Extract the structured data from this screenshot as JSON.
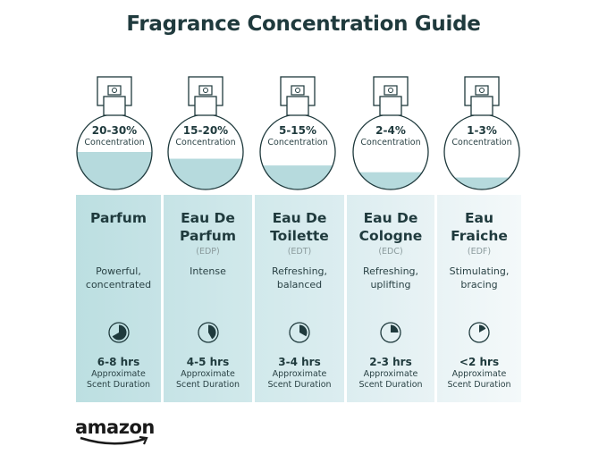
{
  "title": "Fragrance Concentration Guide",
  "colors": {
    "text": "#1f3a3d",
    "liquid": "#b6dadd",
    "panel_dark": "#bcdfe1",
    "panel_light": "#eef6f8"
  },
  "items": [
    {
      "concentration": "20-30%",
      "concentration_label": "Concentration",
      "fill_level": 0.5,
      "name_line1": "Parfum",
      "name_line2": "",
      "abbr": "",
      "desc_line1": "Powerful,",
      "desc_line2": "concentrated",
      "duration": "6-8 hrs",
      "duration_label1": "Approximate",
      "duration_label2": "Scent Duration",
      "clock_fraction": 0.667
    },
    {
      "concentration": "15-20%",
      "concentration_label": "Concentration",
      "fill_level": 0.41,
      "name_line1": "Eau De",
      "name_line2": "Parfum",
      "abbr": "(EDP)",
      "desc_line1": "Intense",
      "desc_line2": "",
      "duration": "4-5 hrs",
      "duration_label1": "Approximate",
      "duration_label2": "Scent Duration",
      "clock_fraction": 0.417
    },
    {
      "concentration": "5-15%",
      "concentration_label": "Concentration",
      "fill_level": 0.32,
      "name_line1": "Eau De",
      "name_line2": "Toilette",
      "abbr": "(EDT)",
      "desc_line1": "Refreshing,",
      "desc_line2": "balanced",
      "duration": "3-4 hrs",
      "duration_label1": "Approximate",
      "duration_label2": "Scent Duration",
      "clock_fraction": 0.333
    },
    {
      "concentration": "2-4%",
      "concentration_label": "Concentration",
      "fill_level": 0.23,
      "name_line1": "Eau De",
      "name_line2": "Cologne",
      "abbr": "(EDC)",
      "desc_line1": "Refreshing,",
      "desc_line2": "uplifting",
      "duration": "2-3 hrs",
      "duration_label1": "Approximate",
      "duration_label2": "Scent Duration",
      "clock_fraction": 0.25
    },
    {
      "concentration": "1-3%",
      "concentration_label": "Concentration",
      "fill_level": 0.16,
      "name_line1": "Eau",
      "name_line2": "Fraiche",
      "abbr": "(EDF)",
      "desc_line1": "Stimulating,",
      "desc_line2": "bracing",
      "duration": "<2 hrs",
      "duration_label1": "Approximate",
      "duration_label2": "Scent Duration",
      "clock_fraction": 0.167
    }
  ],
  "logo": "amazon"
}
